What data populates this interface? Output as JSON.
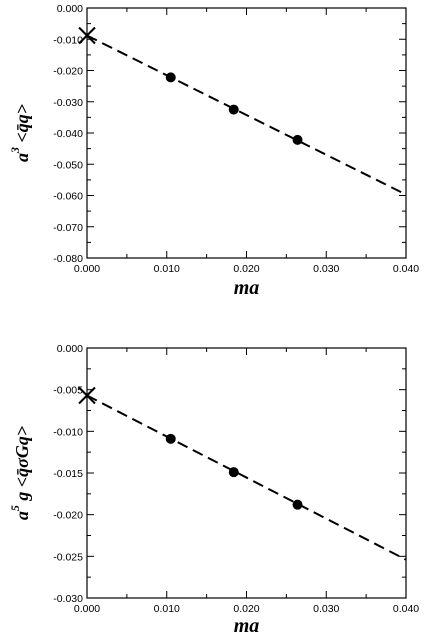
{
  "chart_data": [
    {
      "type": "scatter",
      "xlabel": "ma",
      "ylabel": {
        "prefix": "a",
        "sup": "3",
        "bracket": "<q̄q>"
      },
      "xlim": [
        0.0,
        0.04
      ],
      "ylim": [
        -0.08,
        0.0
      ],
      "xticks": [
        "0.000",
        "0.010",
        "0.020",
        "0.030",
        "0.040"
      ],
      "yticks": [
        "0.000",
        "-0.010",
        "-0.020",
        "-0.030",
        "-0.040",
        "-0.050",
        "-0.060",
        "-0.070",
        "-0.080"
      ],
      "points": {
        "x": [
          0.0105,
          0.0184,
          0.0264
        ],
        "y": [
          -0.0222,
          -0.0325,
          -0.0422
        ]
      },
      "extrapolation": {
        "x": 0.0,
        "y": -0.0088,
        "marker": "cross"
      },
      "fit_line": {
        "style": "dashed",
        "x": [
          0.0,
          0.04
        ],
        "y": [
          -0.0088,
          -0.0597
        ]
      }
    },
    {
      "type": "scatter",
      "xlabel": "ma",
      "ylabel": {
        "prefix": "a",
        "sup": "5",
        "mid": "g",
        "bracket": "<q̄σGq>"
      },
      "xlim": [
        0.0,
        0.04
      ],
      "ylim": [
        -0.03,
        0.0
      ],
      "xticks": [
        "0.000",
        "0.010",
        "0.020",
        "0.030",
        "0.040"
      ],
      "yticks": [
        "0.000",
        "-0.005",
        "-0.010",
        "-0.015",
        "-0.020",
        "-0.025",
        "-0.030"
      ],
      "points": {
        "x": [
          0.0105,
          0.0184,
          0.0264
        ],
        "y": [
          -0.0109,
          -0.0149,
          -0.0188
        ]
      },
      "extrapolation": {
        "x": 0.0,
        "y": -0.0057,
        "marker": "cross"
      },
      "fit_line": {
        "style": "dashed",
        "x": [
          0.0,
          0.04
        ],
        "y": [
          -0.0057,
          -0.0254
        ]
      }
    }
  ]
}
